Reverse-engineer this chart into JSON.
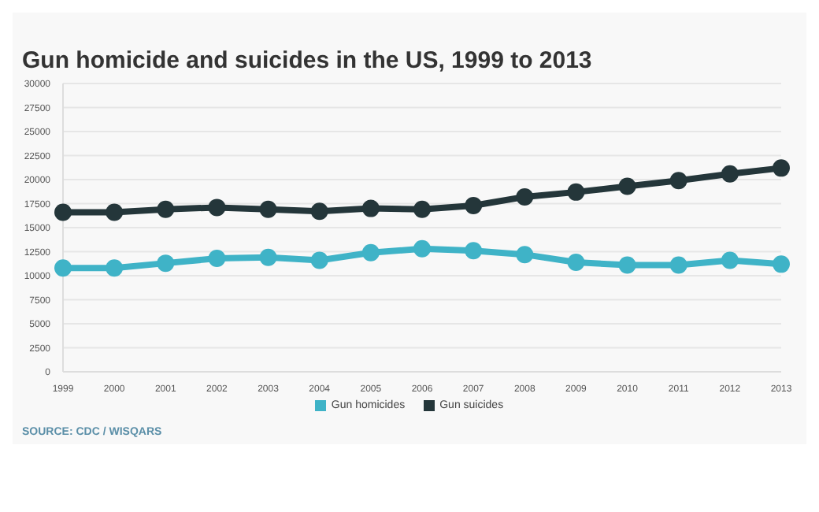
{
  "chart_data": {
    "type": "line",
    "title": "Gun homicide and suicides in the US, 1999 to 2013",
    "categories": [
      "1999",
      "2000",
      "2001",
      "2002",
      "2003",
      "2004",
      "2005",
      "2006",
      "2007",
      "2008",
      "2009",
      "2010",
      "2011",
      "2012",
      "2013"
    ],
    "series": [
      {
        "name": "Gun homicides",
        "color": "#3fb3c7",
        "values": [
          10800,
          10800,
          11300,
          11800,
          11900,
          11600,
          12400,
          12800,
          12600,
          12200,
          11400,
          11100,
          11100,
          11600,
          11200
        ]
      },
      {
        "name": "Gun suicides",
        "color": "#24363a",
        "values": [
          16600,
          16600,
          16900,
          17100,
          16900,
          16700,
          17000,
          16900,
          17300,
          18200,
          18700,
          19300,
          19900,
          20600,
          21200
        ]
      }
    ],
    "ylim": [
      0,
      30000
    ],
    "yticks": [
      0,
      2500,
      5000,
      7500,
      10000,
      12500,
      15000,
      17500,
      20000,
      22500,
      25000,
      27500,
      30000
    ],
    "grid": "y",
    "legend": "bottom",
    "marker": "circle",
    "line_style": "solid",
    "annotations": [
      "SOURCE: CDC / WISQARS"
    ]
  }
}
